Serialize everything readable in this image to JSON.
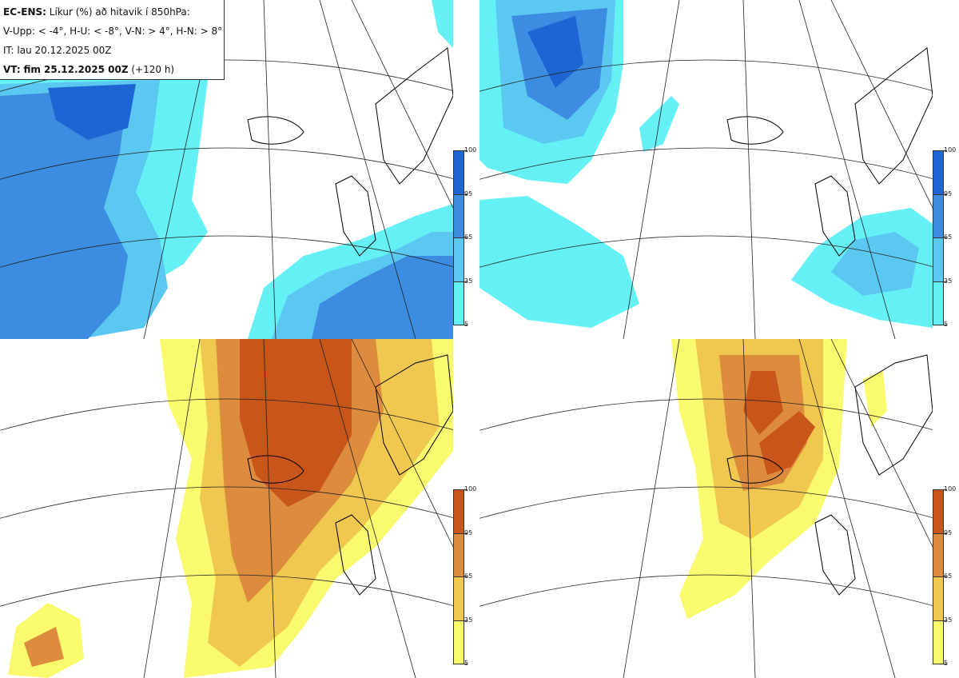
{
  "header": {
    "model_label": "EC-ENS:",
    "title": "Líkur (%) að hitavik í 850hPa:",
    "legend_line": "V-Upp: < -4°, H-U: < -8°, V-N: > 4°, H-N: > 8°",
    "init_time": "IT: lau 20.12.2025 00Z",
    "valid_label": "VT:",
    "valid_time": "fim 25.12.2025 00Z",
    "lead": "(+120 h)"
  },
  "panels": [
    {
      "id": "V-Upp",
      "description": "Probability anomaly < -4°",
      "palette": "cold"
    },
    {
      "id": "H-U",
      "description": "Probability anomaly < -8°",
      "palette": "cold"
    },
    {
      "id": "V-N",
      "description": "Probability anomaly > 4°",
      "palette": "warm"
    },
    {
      "id": "H-N",
      "description": "Probability anomaly > 8°",
      "palette": "warm"
    }
  ],
  "colorbar": {
    "ticks": [
      "100",
      "95",
      "65",
      "35",
      "5"
    ],
    "cold_colors": [
      "#1e64d2",
      "#3c8ce1",
      "#5ac8f0",
      "#64f0f5"
    ],
    "warm_colors": [
      "#c85519",
      "#dc8c3c",
      "#f0c850",
      "#fafa6e"
    ]
  }
}
